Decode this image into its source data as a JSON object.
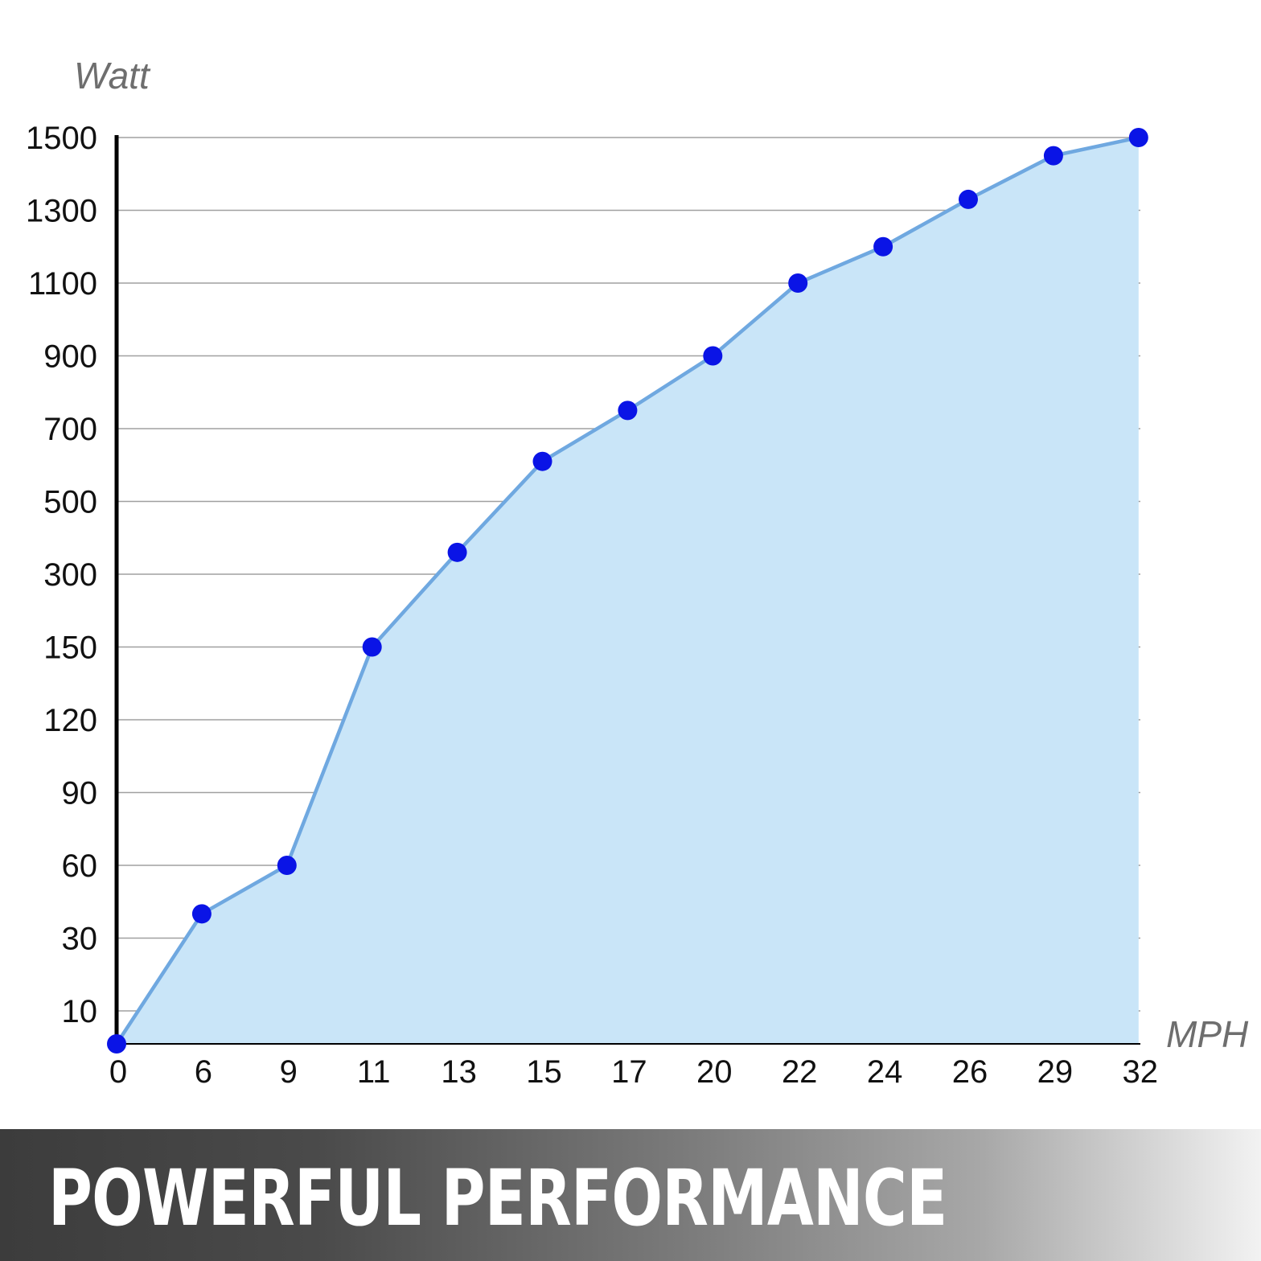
{
  "chart_data": {
    "type": "area",
    "title": "",
    "xlabel": "MPH",
    "ylabel": "Watt",
    "x_ticks": [
      "0",
      "6",
      "9",
      "11",
      "13",
      "15",
      "17",
      "20",
      "22",
      "24",
      "26",
      "29",
      "32"
    ],
    "y_ticks": [
      "10",
      "30",
      "60",
      "90",
      "120",
      "150",
      "300",
      "500",
      "700",
      "900",
      "1100",
      "1300",
      "1500"
    ],
    "grid": true,
    "colors": {
      "line": "#6fa8e0",
      "fill": "#c9e5f8",
      "marker": "#0a14e6",
      "axis": "#000000",
      "grid": "#a0a0a0"
    },
    "series": [
      {
        "x": [
          0,
          6,
          9,
          11,
          13,
          15,
          17,
          20,
          22,
          24,
          26,
          29,
          32
        ],
        "y": [
          0,
          40,
          60,
          150,
          360,
          610,
          750,
          900,
          1100,
          1200,
          1330,
          1450,
          1500
        ]
      }
    ]
  },
  "banner": {
    "title": "POWERFUL PERFORMANCE"
  }
}
